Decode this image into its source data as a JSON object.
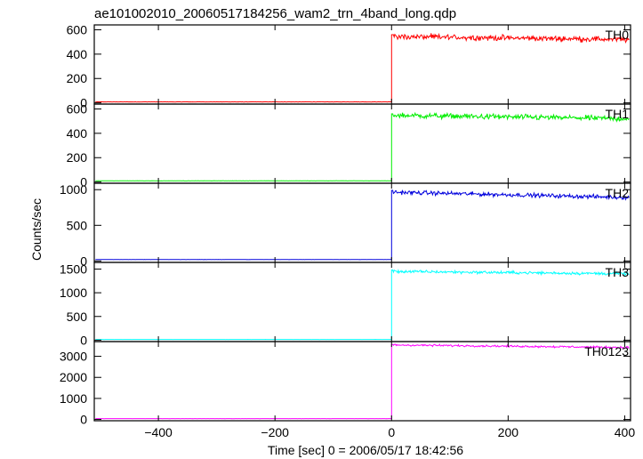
{
  "title": "ae101002010_20060517184256_wam2_trn_4band_long.qdp",
  "chart_data": {
    "type": "line",
    "title": "ae101002010_20060517184256_wam2_trn_4band_long.qdp",
    "xlabel": "Time [sec] 0 = 2006/05/17 18:42:56",
    "ylabel": "Counts/sec",
    "xlim": [
      -510,
      410
    ],
    "x_ticks": [
      -400,
      -200,
      0,
      200,
      400
    ],
    "x_tick_labels": [
      "−400",
      "−200",
      "0",
      "200",
      "400"
    ],
    "grid": false,
    "step_time": 0,
    "series": [
      {
        "name": "TH0",
        "color": "#ff0000",
        "ylim": [
          -10,
          640
        ],
        "y_ticks": [
          0,
          200,
          400,
          600
        ],
        "pre_level": 8,
        "peak": 560,
        "post_start": 545,
        "post_end": 520,
        "noise": 22
      },
      {
        "name": "TH1",
        "color": "#00ee00",
        "ylim": [
          -10,
          640
        ],
        "y_ticks": [
          0,
          200,
          400,
          600
        ],
        "pre_level": 10,
        "peak": 560,
        "post_start": 548,
        "post_end": 520,
        "noise": 22
      },
      {
        "name": "TH2",
        "color": "#0000dd",
        "ylim": [
          -20,
          1090
        ],
        "y_ticks": [
          0,
          500,
          1000
        ],
        "pre_level": 20,
        "peak": 990,
        "post_start": 965,
        "post_end": 890,
        "noise": 28
      },
      {
        "name": "TH3",
        "color": "#00ffff",
        "ylim": [
          -30,
          1640
        ],
        "y_ticks": [
          0,
          500,
          1000,
          1500
        ],
        "pre_level": 15,
        "peak": 1480,
        "post_start": 1450,
        "post_end": 1400,
        "noise": 30
      },
      {
        "name": "TH0123",
        "color": "#ff00ff",
        "ylim": [
          -60,
          3700
        ],
        "y_ticks": [
          0,
          1000,
          2000,
          3000
        ],
        "pre_level": 40,
        "peak": 3560,
        "post_start": 3540,
        "post_end": 3420,
        "noise": 45
      }
    ]
  }
}
